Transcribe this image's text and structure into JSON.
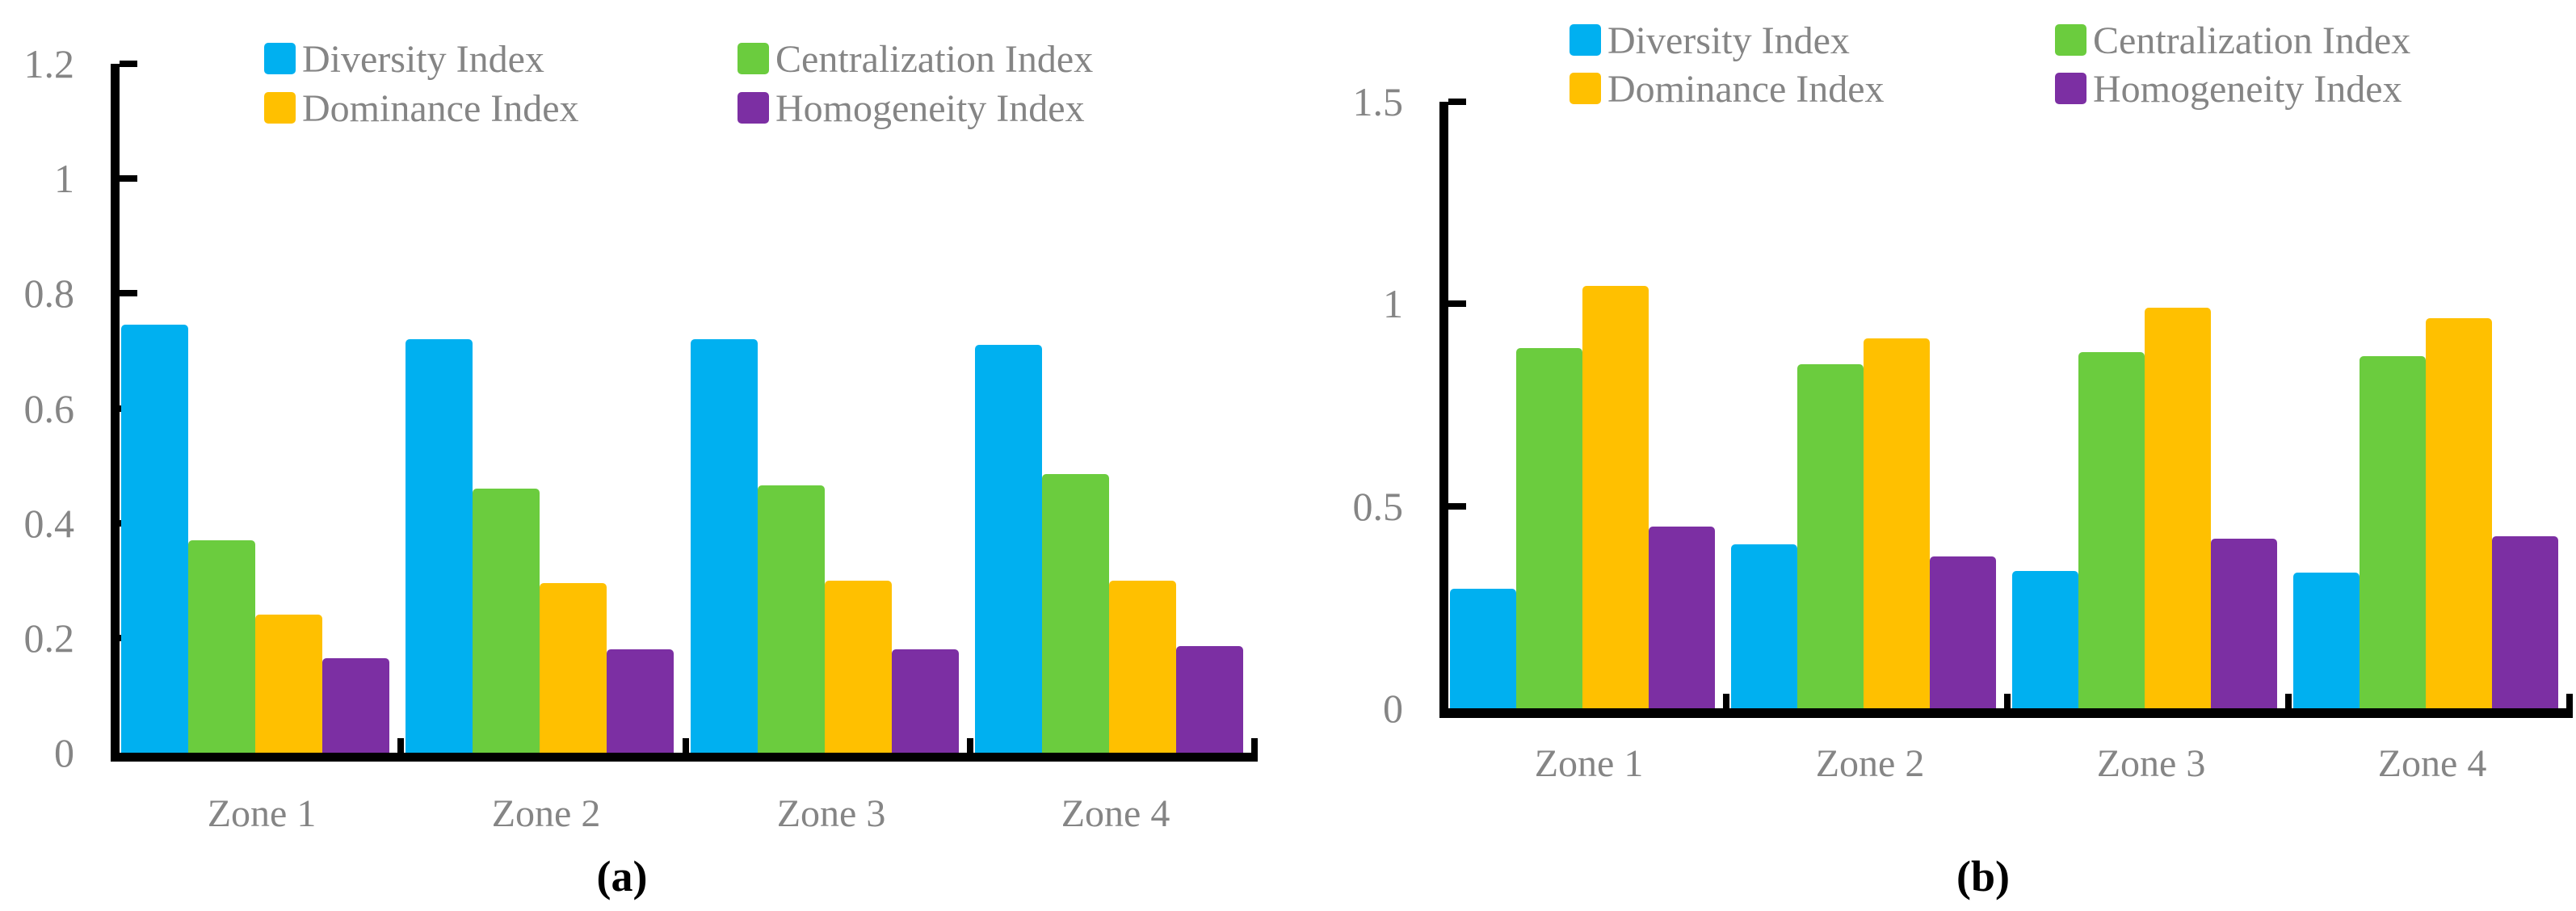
{
  "page": {
    "background": "#ffffff"
  },
  "colors": {
    "blue": "#00B0F0",
    "green": "#6BCC3E",
    "yellow": "#FFC000",
    "purple": "#7C2FA3",
    "axis": "#000000",
    "label_gray": "#858585"
  },
  "chart_data": [
    {
      "type": "bar",
      "panel_label": "(a)",
      "title": "",
      "xlabel": "",
      "ylabel": "",
      "grid": false,
      "legend_position": "top",
      "categories": [
        "Zone 1",
        "Zone 2",
        "Zone 3",
        "Zone 4"
      ],
      "series": [
        {
          "name": "Diversity Index",
          "color_key": "blue",
          "values": [
            0.745,
            0.72,
            0.72,
            0.71
          ]
        },
        {
          "name": "Centralization Index",
          "color_key": "green",
          "values": [
            0.37,
            0.46,
            0.465,
            0.485
          ]
        },
        {
          "name": "Dominance Index",
          "color_key": "yellow",
          "values": [
            0.24,
            0.295,
            0.3,
            0.3
          ]
        },
        {
          "name": "Homogeneity Index",
          "color_key": "purple",
          "values": [
            0.165,
            0.18,
            0.18,
            0.185
          ]
        }
      ],
      "ylim": [
        0,
        1.2
      ],
      "yticks": [
        0,
        0.2,
        0.4,
        0.6,
        0.8,
        1,
        1.2
      ],
      "ytick_labels": [
        "0",
        "0.2",
        "0.4",
        "0.6",
        "0.8",
        "1",
        "1.2"
      ],
      "legend_columns": [
        [
          0,
          2
        ],
        [
          1,
          3
        ]
      ]
    },
    {
      "type": "bar",
      "panel_label": "(b)",
      "title": "",
      "xlabel": "",
      "ylabel": "",
      "grid": false,
      "legend_position": "top",
      "categories": [
        "Zone 1",
        "Zone 2",
        "Zone 3",
        "Zone 4"
      ],
      "series": [
        {
          "name": "Diversity Index",
          "color_key": "blue",
          "values": [
            0.295,
            0.405,
            0.34,
            0.335
          ]
        },
        {
          "name": "Centralization Index",
          "color_key": "green",
          "values": [
            0.89,
            0.85,
            0.88,
            0.87
          ]
        },
        {
          "name": "Dominance Index",
          "color_key": "yellow",
          "values": [
            1.045,
            0.915,
            0.99,
            0.965
          ]
        },
        {
          "name": "Homogeneity Index",
          "color_key": "purple",
          "values": [
            0.45,
            0.375,
            0.42,
            0.425
          ]
        }
      ],
      "ylim": [
        0,
        1.5
      ],
      "yticks": [
        0,
        0.5,
        1,
        1.5
      ],
      "ytick_labels": [
        "0",
        "0.5",
        "1",
        "1.5"
      ],
      "legend_columns": [
        [
          0,
          2
        ],
        [
          1,
          3
        ]
      ]
    }
  ]
}
